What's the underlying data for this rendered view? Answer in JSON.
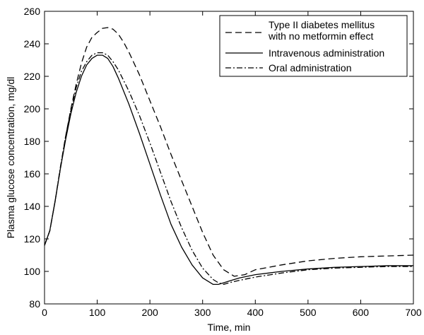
{
  "chart_data": {
    "type": "line",
    "xlabel": "Time, min",
    "ylabel": "Plasma glucose concentration, mg/dl",
    "xlim": [
      0,
      700
    ],
    "ylim": [
      80,
      260
    ],
    "xticks": [
      0,
      100,
      200,
      300,
      400,
      500,
      600,
      700
    ],
    "yticks": [
      80,
      100,
      120,
      140,
      160,
      180,
      200,
      220,
      240,
      260
    ],
    "grid": false,
    "legend_position": "top-right",
    "series": [
      {
        "name": "Type II diabetes mellitus with no metformin effect",
        "legend_lines": [
          "Type II diabetes mellitus",
          "with no metformin effect"
        ],
        "line_style": "dashed",
        "x": [
          0,
          10,
          20,
          30,
          40,
          50,
          60,
          70,
          80,
          90,
          100,
          110,
          120,
          130,
          140,
          150,
          160,
          180,
          200,
          220,
          240,
          260,
          280,
          300,
          320,
          340,
          360,
          380,
          400,
          450,
          500,
          550,
          600,
          650,
          700
        ],
        "y": [
          116,
          125,
          143,
          163,
          183,
          200,
          215,
          228,
          238,
          244,
          247,
          249.5,
          250,
          249,
          246,
          241,
          235,
          221,
          205,
          189,
          172,
          156,
          140,
          124,
          110,
          101,
          97,
          98,
          101,
          104,
          106.5,
          108,
          109,
          109.5,
          110
        ]
      },
      {
        "name": "Intravenous administration",
        "legend_lines": [
          "Intravenous administration"
        ],
        "line_style": "solid",
        "x": [
          0,
          10,
          20,
          30,
          40,
          50,
          60,
          70,
          80,
          90,
          100,
          110,
          120,
          130,
          140,
          160,
          180,
          200,
          220,
          240,
          260,
          280,
          300,
          320,
          330,
          340,
          350,
          370,
          400,
          450,
          500,
          550,
          600,
          650,
          700
        ],
        "y": [
          116,
          125,
          143,
          163,
          181,
          197,
          210,
          220,
          227,
          231,
          233,
          233,
          231,
          226,
          219,
          203,
          185,
          166,
          147,
          129,
          115,
          104,
          96,
          92,
          92,
          93,
          94,
          96,
          98,
          100,
          101.5,
          102.5,
          103,
          103.5,
          103.5
        ]
      },
      {
        "name": "Oral administration",
        "legend_lines": [
          "Oral administration"
        ],
        "line_style": "dashdot",
        "x": [
          0,
          10,
          20,
          30,
          40,
          50,
          60,
          70,
          80,
          90,
          100,
          110,
          120,
          130,
          140,
          160,
          180,
          200,
          220,
          240,
          260,
          280,
          300,
          320,
          330,
          340,
          350,
          370,
          400,
          450,
          500,
          550,
          600,
          650,
          700
        ],
        "y": [
          116,
          125,
          143,
          164,
          183,
          199,
          213,
          223,
          229,
          233,
          234.5,
          234.5,
          233,
          229,
          224,
          211,
          196,
          179,
          161,
          143,
          127,
          113,
          102,
          95,
          93,
          92,
          93,
          94.5,
          96.5,
          99,
          101,
          102,
          102.5,
          103,
          103
        ]
      }
    ]
  }
}
